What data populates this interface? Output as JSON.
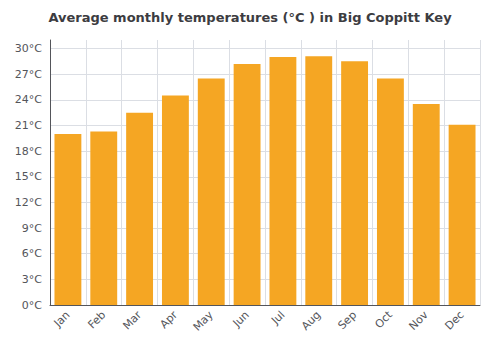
{
  "chart_data": {
    "type": "bar",
    "title": "Average monthly temperatures (°C ) in Big Coppitt Key",
    "categories": [
      "Jan",
      "Feb",
      "Mar",
      "Apr",
      "May",
      "Jun",
      "Jul",
      "Aug",
      "Sep",
      "Oct",
      "Nov",
      "Dec"
    ],
    "values": [
      20.0,
      20.3,
      22.5,
      24.5,
      26.5,
      28.2,
      29.0,
      29.1,
      28.5,
      26.5,
      23.5,
      21.1
    ],
    "color": "#F5A623",
    "ylim": [
      0,
      31
    ],
    "yticks": [
      {
        "value": 0,
        "label": "0°C"
      },
      {
        "value": 3,
        "label": "3°C"
      },
      {
        "value": 6,
        "label": "6°C"
      },
      {
        "value": 9,
        "label": "9°C"
      },
      {
        "value": 12,
        "label": "12°C"
      },
      {
        "value": 15,
        "label": "15°C"
      },
      {
        "value": 18,
        "label": "18°C"
      },
      {
        "value": 21,
        "label": "21°C"
      },
      {
        "value": 24,
        "label": "24°C"
      },
      {
        "value": 27,
        "label": "27°C"
      },
      {
        "value": 30,
        "label": "30°C"
      }
    ],
    "grid": true
  }
}
